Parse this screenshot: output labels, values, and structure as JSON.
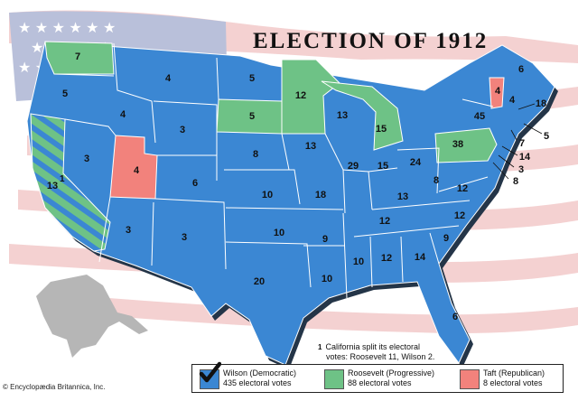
{
  "title": "ELECTION OF 1912",
  "colors": {
    "wilson": "#3b87d3",
    "roosevelt": "#6ec286",
    "taft": "#f2827c",
    "flag_stripe": "#f1c4c4",
    "flag_canton": "#a9b3d3",
    "alaska": "#b6b6b6"
  },
  "states": {
    "WA": "7",
    "OR": "5",
    "CA": "13",
    "CA_note": "1",
    "ID": "4",
    "NV": "3",
    "MT": "4",
    "WY": "3",
    "UT": "4",
    "CO": "6",
    "AZ": "3",
    "NM": "3",
    "ND": "5",
    "SD": "5",
    "NE": "8",
    "KS": "10",
    "OK": "10",
    "TX": "20",
    "MN": "12",
    "IA": "13",
    "MO": "18",
    "AR": "9",
    "LA": "10",
    "WI": "13",
    "IL": "29",
    "MI": "15",
    "IN": "15",
    "OH": "24",
    "KY": "13",
    "TN": "12",
    "MS": "10",
    "AL": "12",
    "GA": "14",
    "FL": "6",
    "SC": "9",
    "NC": "12",
    "VA": "12",
    "WV": "8",
    "PA": "38",
    "NY": "45",
    "ME": "6",
    "VT": "4",
    "NH": "4",
    "MA": "18",
    "RI": "5",
    "CT": "7",
    "NJ": "14",
    "DE": "3",
    "MD": "8"
  },
  "footnote": {
    "marker": "1",
    "line1": "California split its electoral",
    "line2": "votes: Roosevelt 11, Wilson 2."
  },
  "legend": [
    {
      "name": "Wilson (Democratic)",
      "votes": "435 electoral votes",
      "color": "#3b87d3",
      "winner": true
    },
    {
      "name": "Roosevelt (Progressive)",
      "votes": "88 electoral votes",
      "color": "#6ec286",
      "winner": false
    },
    {
      "name": "Taft (Republican)",
      "votes": "8 electoral votes",
      "color": "#f2827c",
      "winner": false
    }
  ],
  "copyright": "© Encyclopædia Britannica, Inc."
}
